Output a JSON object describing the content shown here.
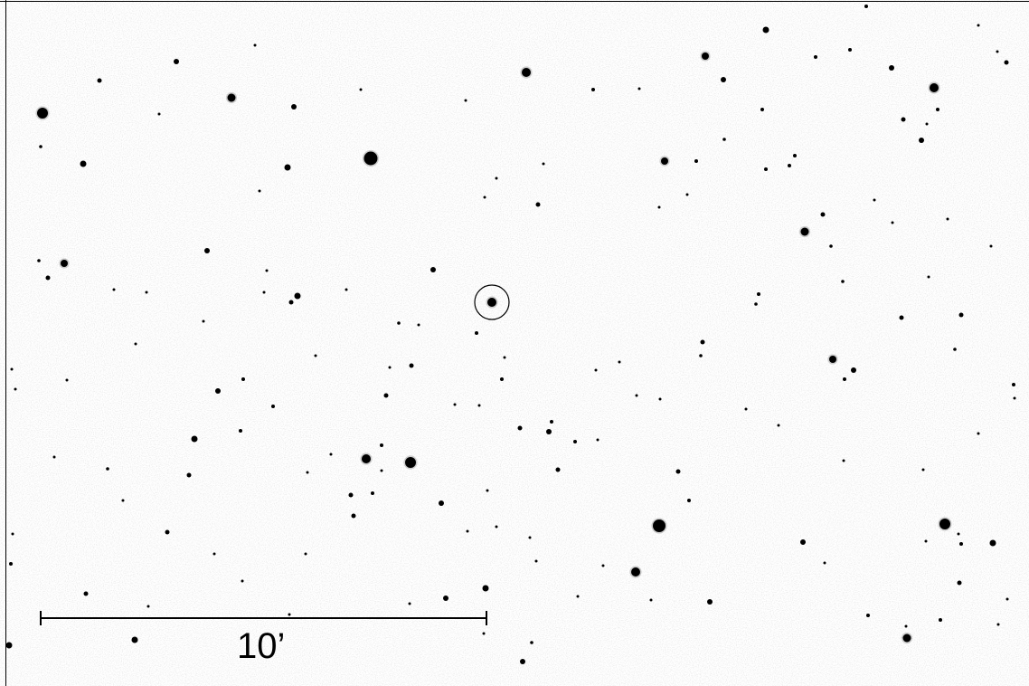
{
  "image": {
    "kind": "star-field finder chart",
    "background_color": "#ffffff",
    "star_color": "#000000"
  },
  "scale_bar": {
    "label": "10’"
  },
  "target_marker": {
    "shape": "circle"
  }
}
